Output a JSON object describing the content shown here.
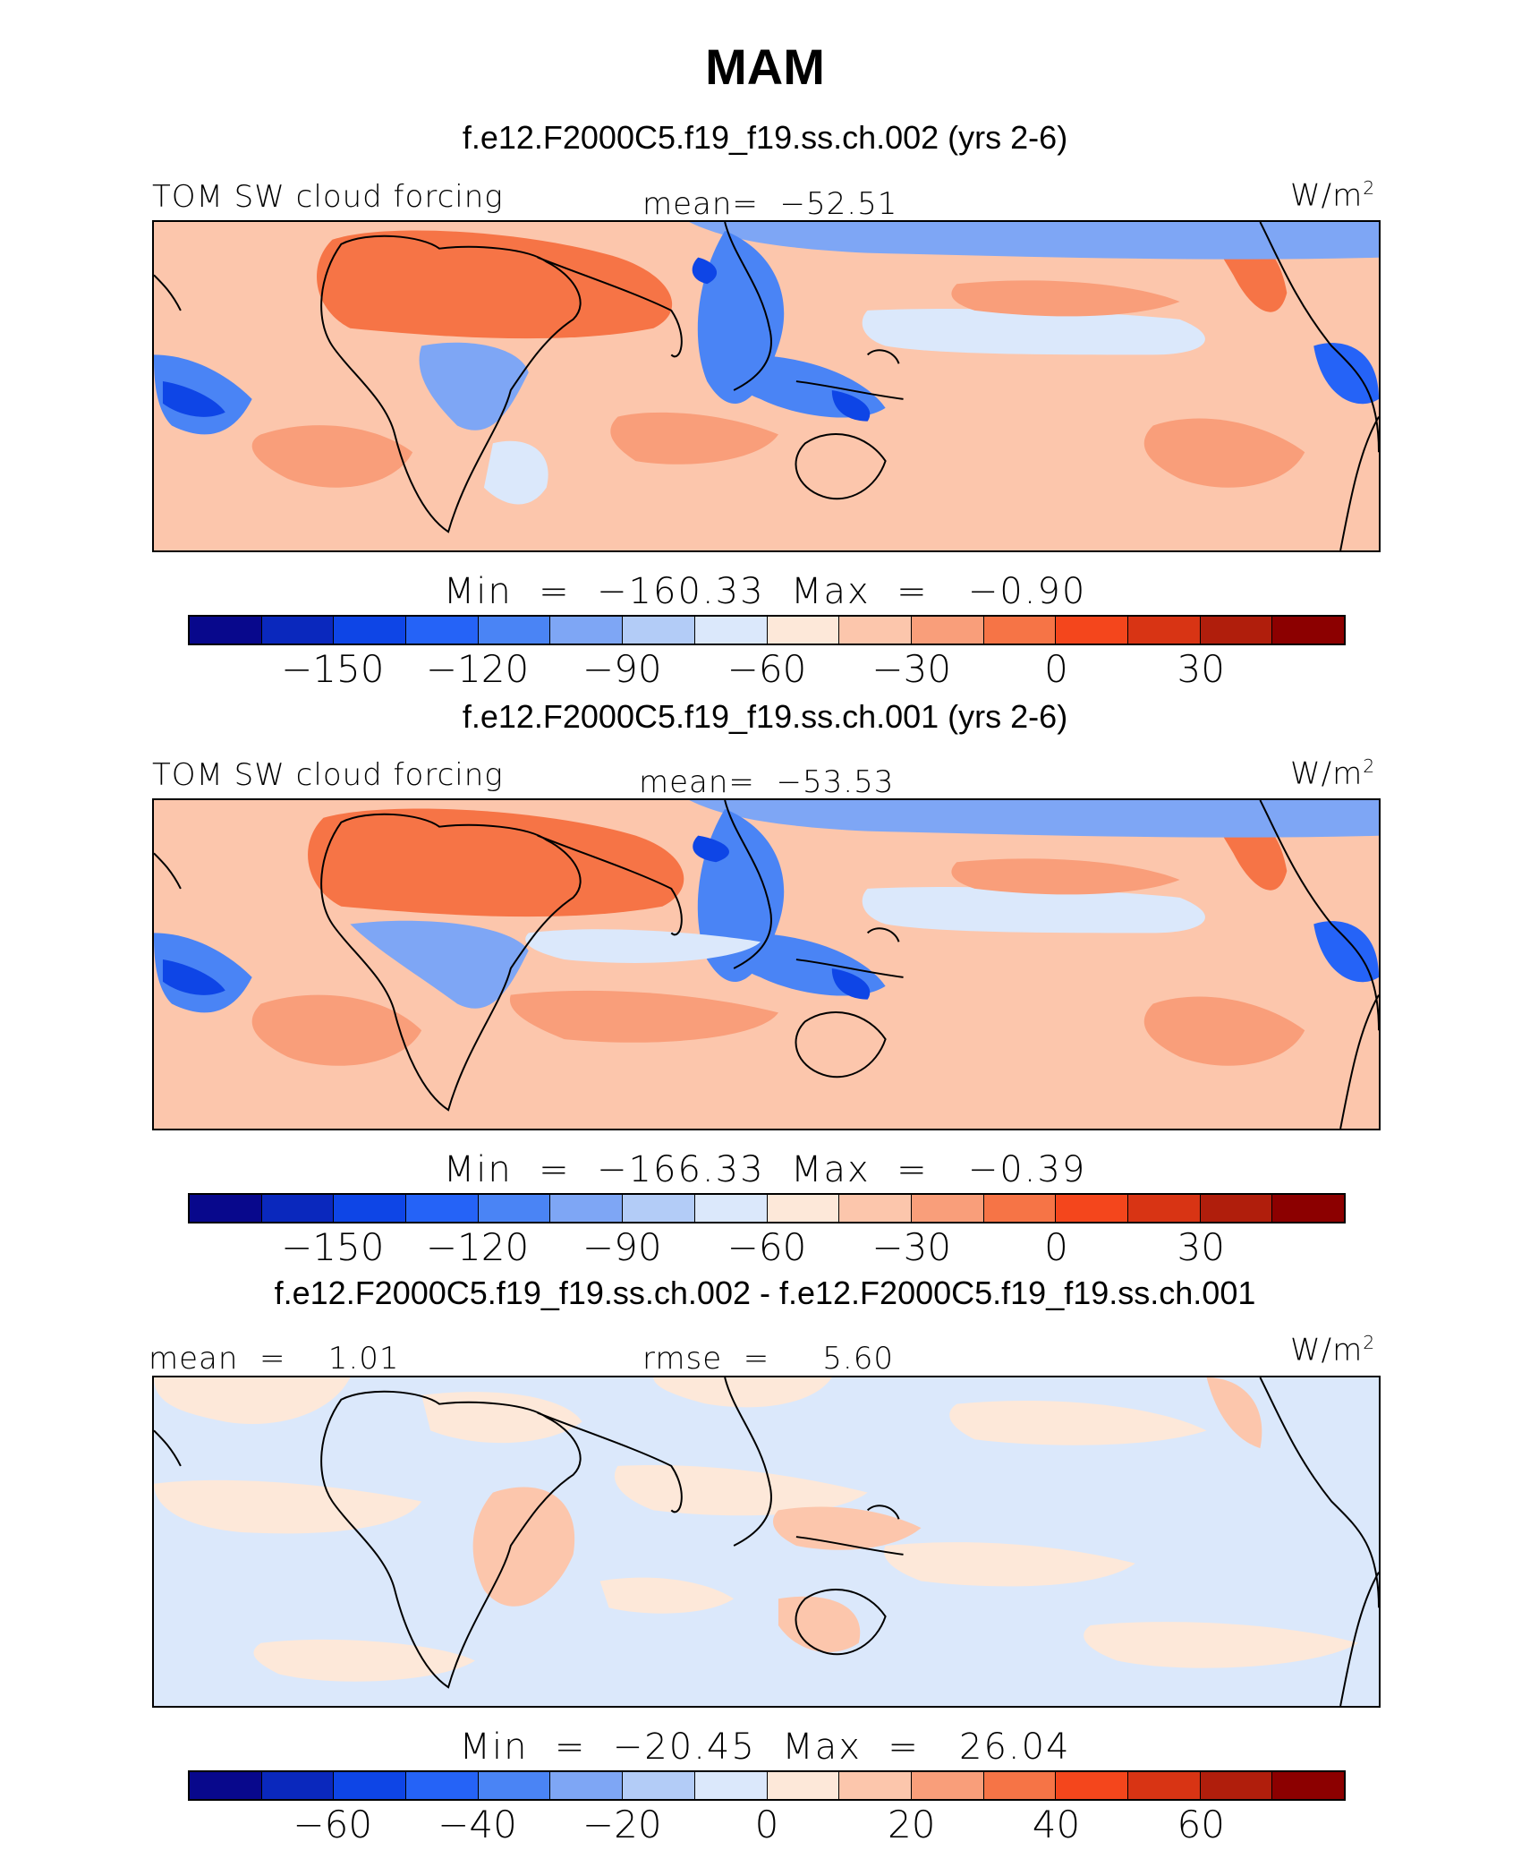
{
  "title": "MAM",
  "units": "W/m",
  "units_exp": "2",
  "colors": [
    "#08088c",
    "#0a28bd",
    "#0e45e6",
    "#2563f7",
    "#4a84f5",
    "#7ea6f5",
    "#b3ccf7",
    "#dbe8fb",
    "#fde8d9",
    "#fcc6ac",
    "#f99e7a",
    "#f67446",
    "#f4461c",
    "#d83414",
    "#b01e0c",
    "#8c0000"
  ],
  "panels": [
    {
      "case": "f.e12.F2000C5.f19_f19.ss.ch.002 (yrs 2-6)",
      "var_label": "TOM SW cloud forcing",
      "mean_label": "mean=  −52.51",
      "minmax": "Min  =  −160.33  Max  =   −0.90",
      "ticks": [
        "−150",
        "−120",
        "−90",
        "−60",
        "−30",
        "0",
        "30"
      ]
    },
    {
      "case": "f.e12.F2000C5.f19_f19.ss.ch.001 (yrs 2-6)",
      "var_label": "TOM SW cloud forcing",
      "mean_label": "mean=  −53.53",
      "minmax": "Min  =  −166.33  Max  =   −0.39",
      "ticks": [
        "−150",
        "−120",
        "−90",
        "−60",
        "−30",
        "0",
        "30"
      ]
    },
    {
      "case": "f.e12.F2000C5.f19_f19.ss.ch.002 - f.e12.F2000C5.f19_f19.ss.ch.001",
      "mean_label": "mean  =    1.01",
      "rmse_label": "rmse  =     5.60",
      "minmax": "Min  =  −20.45  Max  =   26.04",
      "ticks": [
        "−60",
        "−40",
        "−20",
        "0",
        "20",
        "40",
        "60"
      ]
    }
  ]
}
